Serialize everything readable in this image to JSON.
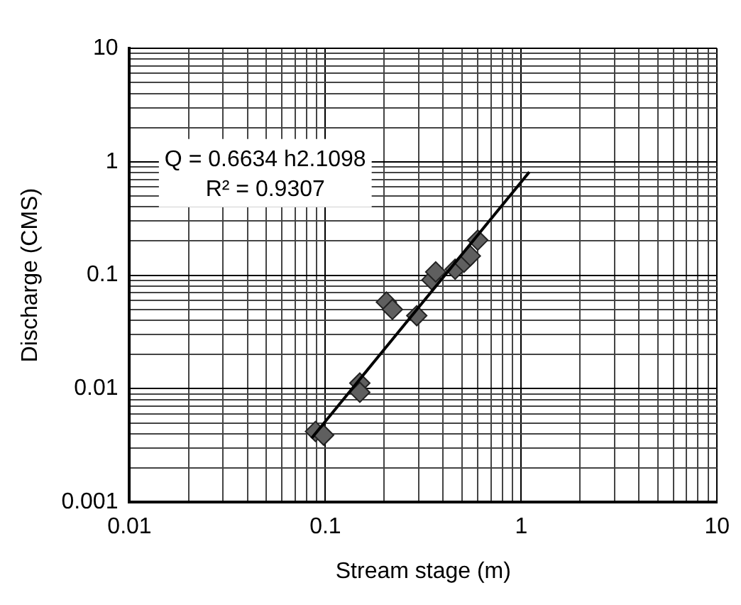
{
  "chart_data": {
    "type": "scatter",
    "xlabel": "Stream stage (m)",
    "ylabel": "Discharge (CMS)",
    "log": "xy",
    "grid": true,
    "marker": "diamond",
    "legend": false,
    "xlim": [
      0.01,
      10
    ],
    "xticks": [
      0.01,
      0.1,
      1,
      10
    ],
    "ylim": [
      0.001,
      10
    ],
    "yticks": [
      0.001,
      0.01,
      0.1,
      1,
      10
    ],
    "annotations": [
      "Q = 0.6634 h2.1098",
      "R² = 0.9307"
    ],
    "series": [
      {
        "type": "scatter",
        "color": "#5f5f5f",
        "x": [
          0.089,
          0.098,
          0.15,
          0.15,
          0.205,
          0.22,
          0.293,
          0.35,
          0.366,
          0.46,
          0.51,
          0.55,
          0.6
        ],
        "values": [
          0.0042,
          0.0039,
          0.0112,
          0.0093,
          0.058,
          0.05,
          0.044,
          0.091,
          0.107,
          0.113,
          0.13,
          0.148,
          0.204
        ]
      },
      {
        "type": "line",
        "color": "#000000",
        "marker": "none",
        "x": [
          0.085,
          1.1
        ],
        "values": [
          0.00366,
          0.811
        ]
      }
    ]
  }
}
